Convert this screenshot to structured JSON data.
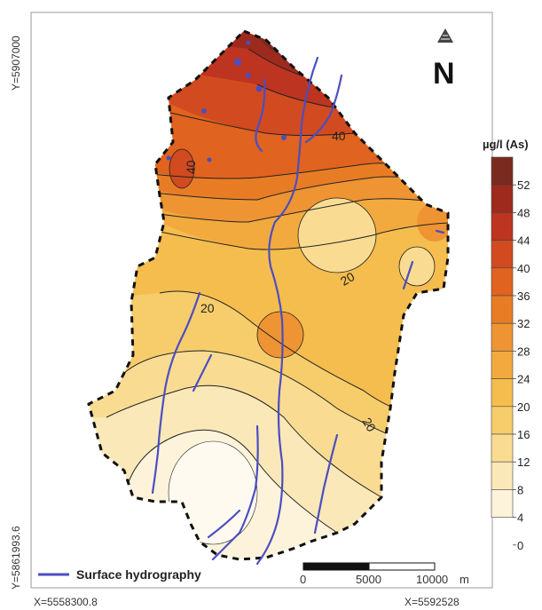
{
  "map": {
    "north_label": "N",
    "north_icon": "north-arrow-icon",
    "coordinates": {
      "y_top": "Y=5907000",
      "y_bottom": "Y=5861993.6",
      "x_left": "X=5558300.8",
      "x_right": "X=5592528"
    },
    "contour_labels": [
      "40",
      "40",
      "20",
      "20",
      "20"
    ],
    "legend": {
      "title": "µg/l (As)",
      "ticks": [
        "52",
        "48",
        "44",
        "40",
        "36",
        "32",
        "28",
        "24",
        "20",
        "16",
        "12",
        "8",
        "4",
        "0"
      ],
      "colors": [
        "#7b2a20",
        "#9e2a1e",
        "#bd3420",
        "#d24a20",
        "#e0631f",
        "#e87c25",
        "#ee9433",
        "#f2aa3f",
        "#f5bd4e",
        "#f7cd6c",
        "#f9dc92",
        "#fbe8b8",
        "#fdf3da"
      ]
    },
    "hydrography": {
      "label": "Surface hydrography",
      "color": "#4b4ec2"
    },
    "scale_bar": {
      "ticks": [
        "0",
        "5000",
        "10000"
      ],
      "unit": "m"
    }
  }
}
